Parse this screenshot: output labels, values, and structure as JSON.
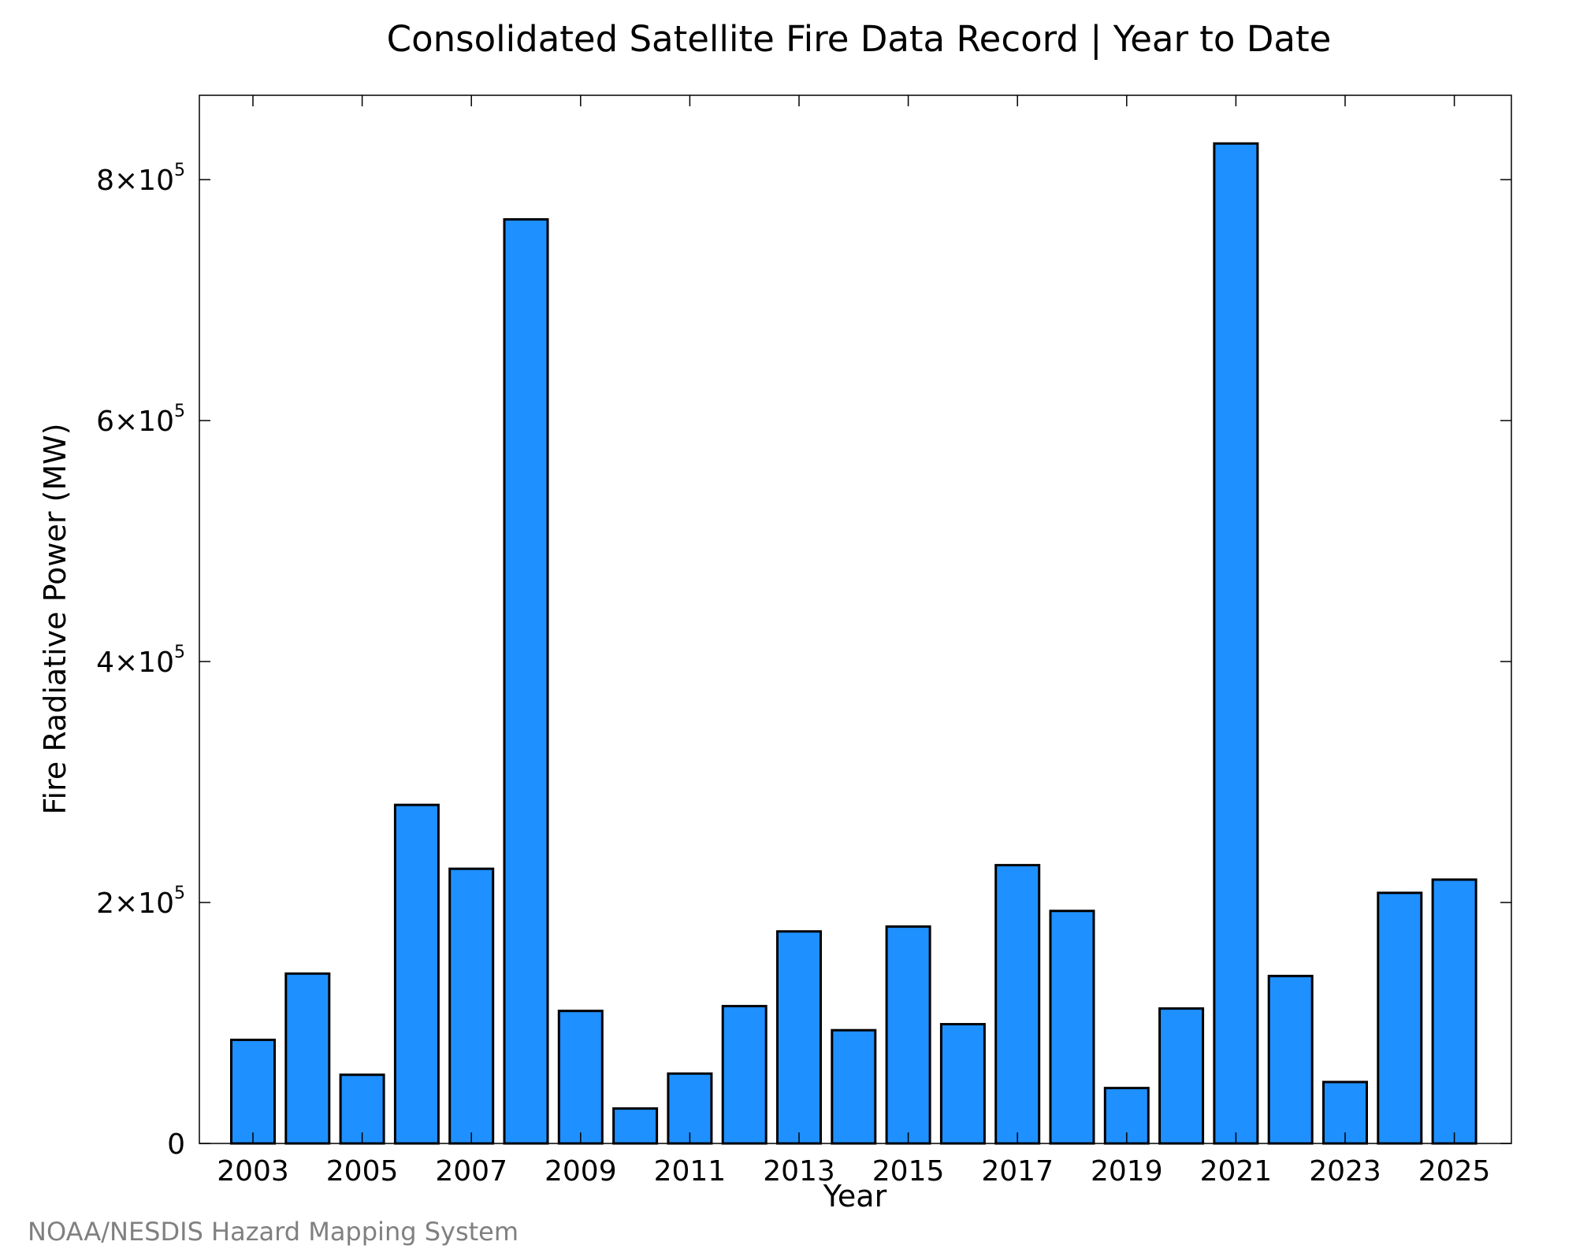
{
  "credit": "NOAA/NESDIS Hazard Mapping System",
  "chart_data": {
    "type": "bar",
    "title": "Consolidated Satellite Fire Data Record | Year to Date",
    "xlabel": "Year",
    "ylabel": "Fire Radiative Power (MW)",
    "categories": [
      "2003",
      "2004",
      "2005",
      "2006",
      "2007",
      "2008",
      "2009",
      "2010",
      "2011",
      "2012",
      "2013",
      "2014",
      "2015",
      "2016",
      "2017",
      "2018",
      "2019",
      "2020",
      "2021",
      "2022",
      "2023",
      "2024",
      "2025"
    ],
    "values": [
      86000,
      141000,
      57000,
      281000,
      228000,
      767000,
      110000,
      29000,
      58000,
      114000,
      176000,
      94000,
      180000,
      99000,
      231000,
      193000,
      46000,
      112000,
      830000,
      139000,
      51000,
      208000,
      219000
    ],
    "x_tick_labels": [
      "2003",
      "2005",
      "2007",
      "2009",
      "2011",
      "2013",
      "2015",
      "2017",
      "2019",
      "2021",
      "2023",
      "2025"
    ],
    "y_ticks": [
      {
        "value": 0,
        "mantissa": "0",
        "exponent": ""
      },
      {
        "value": 200000,
        "mantissa": "2×10",
        "exponent": "5"
      },
      {
        "value": 400000,
        "mantissa": "4×10",
        "exponent": "5"
      },
      {
        "value": 600000,
        "mantissa": "6×10",
        "exponent": "5"
      },
      {
        "value": 800000,
        "mantissa": "8×10",
        "exponent": "5"
      }
    ],
    "ylim": [
      0,
      870000
    ],
    "grid": false,
    "bar_color": "#1E90FF"
  }
}
